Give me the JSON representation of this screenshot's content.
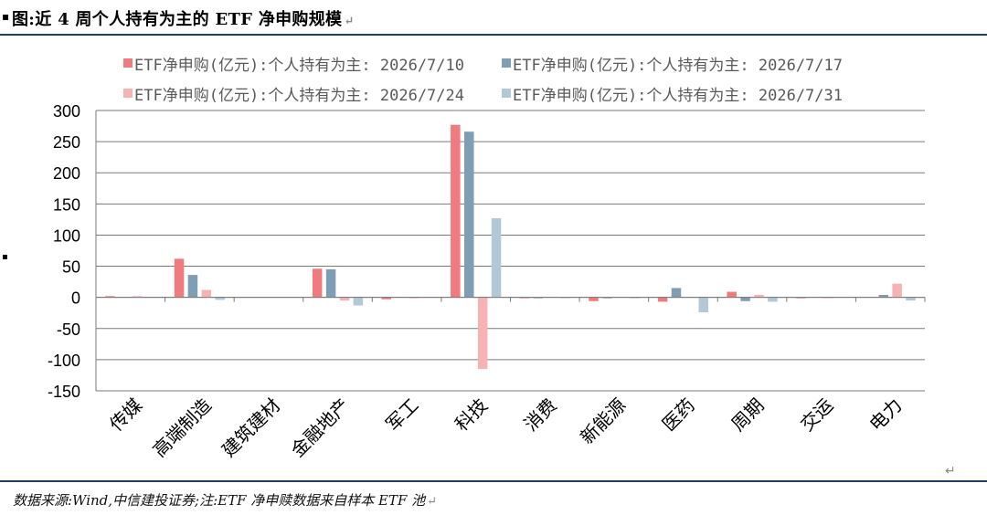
{
  "figure": {
    "title_marker": "▪",
    "title": "图:近 4 周个人持有为主的 ETF 净申购规模",
    "return_glyph": "↵",
    "side_marker": "▪",
    "source": "数据来源:Wind,中信建投证券;注:ETF 净申赎数据来自样本 ETF 池"
  },
  "chart_data": {
    "type": "bar",
    "categories": [
      "传媒",
      "高端制造",
      "建筑建材",
      "金融地产",
      "军工",
      "科技",
      "消费",
      "新能源",
      "医药",
      "周期",
      "交运",
      "电力"
    ],
    "series": [
      {
        "name": "ETF净申购(亿元):个人持有为主: 2026/7/10",
        "color": "#f07a7e",
        "values": [
          2,
          62,
          0,
          46,
          -3,
          277,
          -1,
          -6,
          -7,
          9,
          -1,
          0
        ]
      },
      {
        "name": "ETF净申购(亿元):个人持有为主: 2026/7/17",
        "color": "#7f9db4",
        "values": [
          0,
          36,
          0,
          45,
          1,
          266,
          -1,
          -1,
          15,
          -6,
          0,
          4
        ]
      },
      {
        "name": "ETF净申购(亿元):个人持有为主: 2026/7/24",
        "color": "#f7b3b4",
        "values": [
          2,
          12,
          0,
          -5,
          -1,
          -115,
          0,
          0,
          0,
          4,
          -1,
          22
        ]
      },
      {
        "name": "ETF净申购(亿元):个人持有为主: 2026/7/31",
        "color": "#b3c8d7",
        "values": [
          0,
          -4,
          0,
          -13,
          0,
          127,
          -1,
          -1,
          -24,
          -7,
          0,
          -5
        ]
      }
    ],
    "yticks": [
      300,
      250,
      200,
      150,
      100,
      50,
      0,
      -50,
      -100,
      -150
    ],
    "ylim": [
      -150,
      300
    ],
    "grid": true,
    "legend_position": "top"
  }
}
